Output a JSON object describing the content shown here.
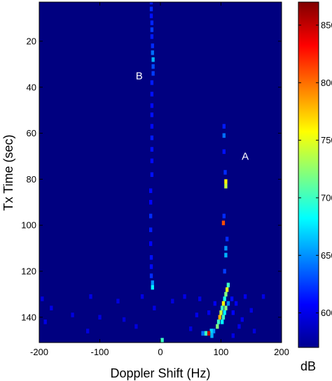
{
  "chart_data": {
    "type": "heatmap",
    "title": "",
    "xlabel": "Doppler Shift (Hz)",
    "ylabel": "Tx Time (sec)",
    "xlim": [
      -200,
      200
    ],
    "ylim": [
      151,
      3
    ],
    "xticks": [
      -200,
      -100,
      0,
      100,
      200
    ],
    "yticks": [
      20,
      40,
      60,
      80,
      100,
      120,
      140
    ],
    "xtick_labels": [
      "-200",
      "-100",
      "0",
      "100",
      "200"
    ],
    "ytick_labels": [
      "20",
      "40",
      "60",
      "80",
      "100",
      "120",
      "140"
    ],
    "background_value_db": 570,
    "colorbar": {
      "label": "dB",
      "range": [
        570,
        870
      ],
      "ticks": [
        600,
        650,
        700,
        750,
        800,
        850
      ],
      "tick_labels": [
        "600",
        "650",
        "700",
        "750",
        "800",
        "850"
      ],
      "colormap": "jet"
    },
    "annotations": [
      {
        "text": "A",
        "x": 140,
        "y": 70
      },
      {
        "text": "B",
        "x": -35,
        "y": 35
      }
    ],
    "cell_size": {
      "doppler_hz": 5,
      "time_sec": 2
    },
    "cells": [
      {
        "doppler": -15,
        "time": 3,
        "value": 615
      },
      {
        "doppler": -15,
        "time": 6,
        "value": 620
      },
      {
        "doppler": -15,
        "time": 9,
        "value": 612
      },
      {
        "doppler": -14,
        "time": 12,
        "value": 618
      },
      {
        "doppler": -14,
        "time": 15,
        "value": 625
      },
      {
        "doppler": -14,
        "time": 18,
        "value": 615
      },
      {
        "doppler": -13,
        "time": 22,
        "value": 620
      },
      {
        "doppler": -13,
        "time": 25,
        "value": 640
      },
      {
        "doppler": -12,
        "time": 28,
        "value": 660
      },
      {
        "doppler": -12,
        "time": 31,
        "value": 630
      },
      {
        "doppler": -12,
        "time": 34,
        "value": 625
      },
      {
        "doppler": -14,
        "time": 38,
        "value": 615
      },
      {
        "doppler": -14,
        "time": 43,
        "value": 612
      },
      {
        "doppler": -14,
        "time": 48,
        "value": 610
      },
      {
        "doppler": -14,
        "time": 52,
        "value": 612
      },
      {
        "doppler": -14,
        "time": 57,
        "value": 610
      },
      {
        "doppler": -14,
        "time": 62,
        "value": 615
      },
      {
        "doppler": -14,
        "time": 67,
        "value": 612
      },
      {
        "doppler": -14,
        "time": 72,
        "value": 610
      },
      {
        "doppler": -14,
        "time": 78,
        "value": 612
      },
      {
        "doppler": -16,
        "time": 85,
        "value": 610
      },
      {
        "doppler": -16,
        "time": 90,
        "value": 608
      },
      {
        "doppler": -16,
        "time": 96,
        "value": 620
      },
      {
        "doppler": -16,
        "time": 102,
        "value": 615
      },
      {
        "doppler": -16,
        "time": 108,
        "value": 608
      },
      {
        "doppler": -15,
        "time": 114,
        "value": 612
      },
      {
        "doppler": -15,
        "time": 118,
        "value": 610
      },
      {
        "doppler": -15,
        "time": 122,
        "value": 620
      },
      {
        "doppler": -13,
        "time": 125,
        "value": 650
      },
      {
        "doppler": -13,
        "time": 127,
        "value": 680
      },
      {
        "doppler": 105,
        "time": 57,
        "value": 615
      },
      {
        "doppler": 105,
        "time": 61,
        "value": 640
      },
      {
        "doppler": 105,
        "time": 68,
        "value": 612
      },
      {
        "doppler": 107,
        "time": 77,
        "value": 620
      },
      {
        "doppler": 108,
        "time": 81,
        "value": 760
      },
      {
        "doppler": 108,
        "time": 83,
        "value": 740
      },
      {
        "doppler": 105,
        "time": 96,
        "value": 620
      },
      {
        "doppler": 104,
        "time": 99,
        "value": 810
      },
      {
        "doppler": 110,
        "time": 106,
        "value": 620
      },
      {
        "doppler": 108,
        "time": 110,
        "value": 650
      },
      {
        "doppler": 108,
        "time": 113,
        "value": 660
      },
      {
        "doppler": 106,
        "time": 120,
        "value": 625
      },
      {
        "doppler": 112,
        "time": 126,
        "value": 700
      },
      {
        "doppler": 110,
        "time": 128,
        "value": 750
      },
      {
        "doppler": 108,
        "time": 130,
        "value": 720
      },
      {
        "doppler": 106,
        "time": 132,
        "value": 690
      },
      {
        "doppler": 104,
        "time": 134,
        "value": 760
      },
      {
        "doppler": 112,
        "time": 134,
        "value": 650
      },
      {
        "doppler": 102,
        "time": 136,
        "value": 700
      },
      {
        "doppler": 108,
        "time": 136,
        "value": 720
      },
      {
        "doppler": 100,
        "time": 138,
        "value": 740
      },
      {
        "doppler": 106,
        "time": 138,
        "value": 680
      },
      {
        "doppler": 98,
        "time": 140,
        "value": 780
      },
      {
        "doppler": 104,
        "time": 140,
        "value": 700
      },
      {
        "doppler": 96,
        "time": 142,
        "value": 700
      },
      {
        "doppler": 102,
        "time": 142,
        "value": 680
      },
      {
        "doppler": 94,
        "time": 144,
        "value": 720
      },
      {
        "doppler": 88,
        "time": 146,
        "value": 650
      },
      {
        "doppler": 84,
        "time": 146,
        "value": 670
      },
      {
        "doppler": 80,
        "time": 147,
        "value": 850
      },
      {
        "doppler": 75,
        "time": 147,
        "value": 700
      },
      {
        "doppler": 70,
        "time": 147,
        "value": 640
      },
      {
        "doppler": 85,
        "time": 148,
        "value": 660
      },
      {
        "doppler": 3,
        "time": 150,
        "value": 700
      },
      {
        "doppler": -115,
        "time": 131,
        "value": 600
      },
      {
        "doppler": -70,
        "time": 133,
        "value": 598
      },
      {
        "doppler": -30,
        "time": 131,
        "value": 600
      },
      {
        "doppler": -195,
        "time": 132,
        "value": 598
      },
      {
        "doppler": -180,
        "time": 136,
        "value": 600
      },
      {
        "doppler": -145,
        "time": 139,
        "value": 598
      },
      {
        "doppler": -190,
        "time": 142,
        "value": 600
      },
      {
        "doppler": -120,
        "time": 146,
        "value": 598
      },
      {
        "doppler": -60,
        "time": 141,
        "value": 596
      },
      {
        "doppler": -40,
        "time": 144,
        "value": 598
      },
      {
        "doppler": -10,
        "time": 136,
        "value": 600
      },
      {
        "doppler": 20,
        "time": 133,
        "value": 598
      },
      {
        "doppler": 40,
        "time": 131,
        "value": 600
      },
      {
        "doppler": 65,
        "time": 132,
        "value": 600
      },
      {
        "doppler": 60,
        "time": 139,
        "value": 602
      },
      {
        "doppler": 50,
        "time": 145,
        "value": 598
      },
      {
        "doppler": 140,
        "time": 131,
        "value": 602
      },
      {
        "doppler": 150,
        "time": 137,
        "value": 600
      },
      {
        "doppler": 130,
        "time": 144,
        "value": 602
      },
      {
        "doppler": 120,
        "time": 148,
        "value": 600
      },
      {
        "doppler": 170,
        "time": 131,
        "value": 600
      },
      {
        "doppler": 125,
        "time": 134,
        "value": 604
      },
      {
        "doppler": 135,
        "time": 141,
        "value": 602
      },
      {
        "doppler": 155,
        "time": 146,
        "value": 598
      },
      {
        "doppler": -100,
        "time": 140,
        "value": 598
      },
      {
        "doppler": 80,
        "time": 138,
        "value": 602
      },
      {
        "doppler": 90,
        "time": 134,
        "value": 604
      },
      {
        "doppler": 118,
        "time": 132,
        "value": 610
      },
      {
        "doppler": 120,
        "time": 138,
        "value": 608
      }
    ]
  }
}
